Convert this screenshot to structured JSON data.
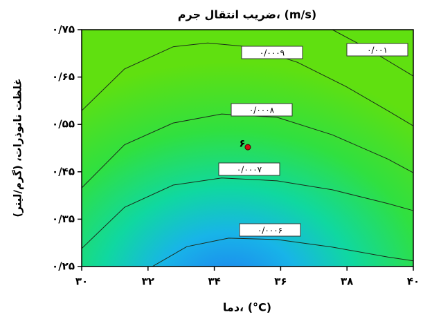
{
  "chart_data": {
    "type": "contour",
    "title": "ضریب انتقال جرم، (m/s)",
    "x_label": "دما، (°C)",
    "y_label": "غلظت نانوذرات، (گرم/لیتر)",
    "xlim": [
      30,
      40
    ],
    "ylim": [
      0.25,
      0.75
    ],
    "xticks": [
      {
        "value": 30,
        "label": "۳۰"
      },
      {
        "value": 32,
        "label": "۳۲"
      },
      {
        "value": 34,
        "label": "۳۴"
      },
      {
        "value": 36,
        "label": "۳۶"
      },
      {
        "value": 38,
        "label": "۳۸"
      },
      {
        "value": 40,
        "label": "۴۰"
      }
    ],
    "yticks": [
      {
        "value": 0.25,
        "label": "۰/۲۵"
      },
      {
        "value": 0.35,
        "label": "۰/۳۵"
      },
      {
        "value": 0.45,
        "label": "۰/۴۵"
      },
      {
        "value": 0.55,
        "label": "۰/۵۵"
      },
      {
        "value": 0.65,
        "label": "۰/۶۵"
      },
      {
        "value": 0.75,
        "label": "۰/۷۵"
      }
    ],
    "contours": [
      {
        "level": {
          "value": 0.0006,
          "label": "۰/۰۰۰۶"
        },
        "x": [
          32.13,
          33.17,
          34.43,
          35.89,
          37.56,
          39.23,
          40
        ],
        "y": [
          0.25,
          0.292,
          0.31,
          0.307,
          0.291,
          0.27,
          0.262
        ]
      },
      {
        "level": {
          "value": 0.0007,
          "label": "۰/۰۰۰۷"
        },
        "x": [
          30,
          31.29,
          32.76,
          34.22,
          35.89,
          37.56,
          39.23,
          40
        ],
        "y": [
          0.288,
          0.375,
          0.422,
          0.437,
          0.431,
          0.412,
          0.383,
          0.368
        ]
      },
      {
        "level": {
          "value": 0.0008,
          "label": "۰/۰۰۰۸"
        },
        "x": [
          30,
          31.29,
          32.76,
          34.22,
          35.89,
          37.56,
          39.23,
          40
        ],
        "y": [
          0.416,
          0.507,
          0.553,
          0.572,
          0.565,
          0.528,
          0.477,
          0.448
        ]
      },
      {
        "level": {
          "value": 0.0009,
          "label": "۰/۰۰۰۹"
        },
        "x": [
          30,
          31.29,
          32.76,
          33.8,
          35.05,
          36.51,
          37.97,
          39.23,
          40
        ],
        "y": [
          0.579,
          0.667,
          0.714,
          0.722,
          0.714,
          0.681,
          0.63,
          0.579,
          0.547
        ]
      },
      {
        "level": {
          "value": 0.001,
          "label": "۰/۰۰۱"
        },
        "x": [
          37.56,
          38.6,
          40
        ],
        "y": [
          0.75,
          0.711,
          0.652
        ]
      }
    ],
    "points": [
      {
        "x": 35.01,
        "y": 0.502,
        "label": "۶",
        "color": "#d01010"
      }
    ]
  }
}
